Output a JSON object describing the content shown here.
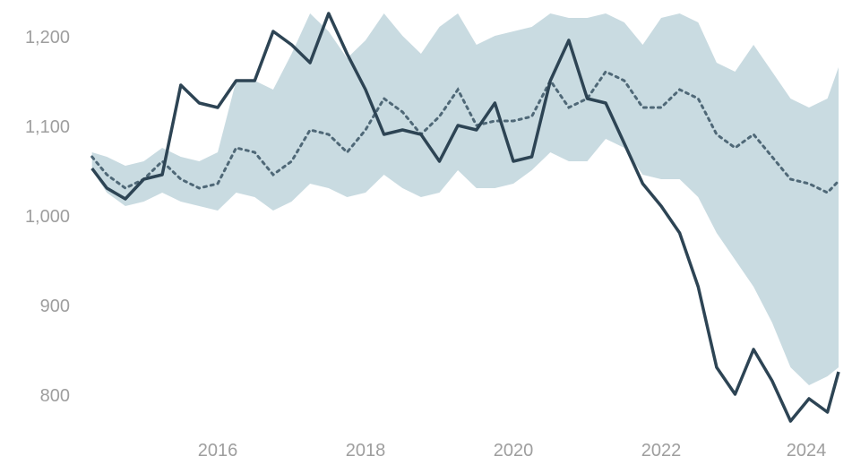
{
  "chart_data": {
    "type": "line",
    "title": "",
    "xlabel": "",
    "ylabel": "",
    "xlim": [
      2014.3,
      2024.4
    ],
    "ylim": [
      760,
      1235
    ],
    "grid": false,
    "legend": "none",
    "x_ticks": [
      2016,
      2018,
      2020,
      2022,
      2024
    ],
    "x_tick_labels": [
      "2016",
      "2018",
      "2020",
      "2022",
      "2024"
    ],
    "y_ticks": [
      800,
      900,
      1000,
      1100,
      1200
    ],
    "y_tick_labels": [
      "800",
      "900",
      "1,000",
      "1,100",
      "1,200"
    ],
    "colors": {
      "actual": "#2d4454",
      "band": "#c9dbe1",
      "median": "#4f6877",
      "tick_text": "#9e9e9e"
    },
    "x": [
      2014.3,
      2014.5,
      2014.75,
      2015.0,
      2015.25,
      2015.5,
      2015.75,
      2016.0,
      2016.25,
      2016.5,
      2016.75,
      2017.0,
      2017.25,
      2017.5,
      2017.75,
      2018.0,
      2018.25,
      2018.5,
      2018.75,
      2019.0,
      2019.25,
      2019.5,
      2019.75,
      2020.0,
      2020.25,
      2020.5,
      2020.75,
      2021.0,
      2021.25,
      2021.5,
      2021.75,
      2022.0,
      2022.25,
      2022.5,
      2022.75,
      2023.0,
      2023.25,
      2023.5,
      2023.75,
      2024.0,
      2024.25,
      2024.4
    ],
    "series": [
      {
        "role": "actual",
        "values": [
          1052,
          1030,
          1018,
          1040,
          1045,
          1145,
          1125,
          1120,
          1150,
          1150,
          1205,
          1190,
          1170,
          1225,
          1180,
          1140,
          1090,
          1095,
          1090,
          1060,
          1100,
          1095,
          1125,
          1060,
          1065,
          1150,
          1195,
          1130,
          1125,
          1080,
          1035,
          1010,
          980,
          920,
          830,
          800,
          850,
          815,
          770,
          795,
          780,
          825
        ]
      },
      {
        "role": "median",
        "values": [
          1065,
          1045,
          1030,
          1040,
          1060,
          1040,
          1030,
          1035,
          1075,
          1070,
          1045,
          1060,
          1095,
          1090,
          1070,
          1095,
          1130,
          1115,
          1090,
          1110,
          1140,
          1100,
          1105,
          1105,
          1110,
          1150,
          1120,
          1130,
          1160,
          1150,
          1120,
          1120,
          1140,
          1130,
          1090,
          1075,
          1090,
          1065,
          1040,
          1035,
          1025,
          1038
        ]
      },
      {
        "role": "band_upper",
        "values": [
          1070,
          1065,
          1055,
          1060,
          1075,
          1065,
          1060,
          1070,
          1150,
          1150,
          1140,
          1180,
          1225,
          1205,
          1175,
          1195,
          1225,
          1200,
          1180,
          1210,
          1225,
          1190,
          1200,
          1205,
          1210,
          1225,
          1220,
          1220,
          1225,
          1215,
          1190,
          1220,
          1225,
          1215,
          1170,
          1160,
          1190,
          1160,
          1130,
          1120,
          1130,
          1165
        ]
      },
      {
        "role": "band_lower",
        "values": [
          1050,
          1025,
          1010,
          1015,
          1025,
          1015,
          1010,
          1005,
          1025,
          1020,
          1005,
          1015,
          1035,
          1030,
          1020,
          1025,
          1045,
          1030,
          1020,
          1025,
          1050,
          1030,
          1030,
          1035,
          1050,
          1070,
          1060,
          1060,
          1085,
          1075,
          1045,
          1040,
          1040,
          1020,
          980,
          950,
          920,
          880,
          830,
          810,
          820,
          830
        ]
      }
    ]
  }
}
